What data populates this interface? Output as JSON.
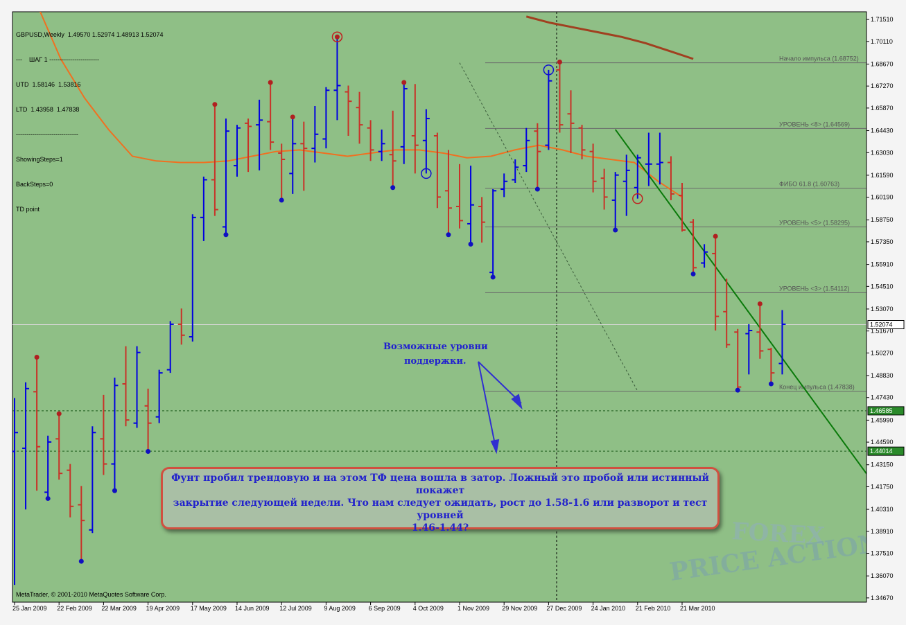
{
  "info_panel": {
    "line1": "GBPUSD,Weekly  1.49570 1.52974 1.48913 1.52074",
    "line2": "---    ШАГ 1 ------------------------",
    "line3": "UTD  1.58146  1.53816",
    "line4": "LTD  1.43958  1.47838",
    "line5": "------------------------------",
    "line6": "ShowingSteps=1",
    "line7": "BackSteps=0",
    "line8": "TD point"
  },
  "copyright": "MetaTrader, © 2001-2010 MetaQuotes Software Corp.",
  "watermark": {
    "line1": "FOREX",
    "line2": "PRICE ACTION"
  },
  "support_annotation": {
    "line1": "Возможные уровни",
    "line2": "поддержки."
  },
  "callout": {
    "line1": "Фунт пробил трендовую и на этом ТФ цена вошла в затор. Ложный это пробой или истинный покажет",
    "line2": "закрытие следующей недели. Что нам следует ожидать, рост до 1.58-1.6 или разворот и тест уровней",
    "line3": "1.46-1.44?"
  },
  "colors": {
    "background": "#8fbf86",
    "up_bar": "#0000e0",
    "down_bar": "#c83228",
    "moving_average_fast": "#f07020",
    "moving_average_slow": "#a04020",
    "trendline": "#0a7a0a",
    "level_line": "#6a6a6a",
    "price_marker_current": "#ffffff",
    "price_marker_support": "#2a8a2a"
  },
  "chart_data": {
    "type": "ohlc",
    "symbol": "GBPUSD,Weekly",
    "ylim": [
      1.344,
      1.72
    ],
    "y_ticks": [
      "1.71510",
      "1.70110",
      "1.68670",
      "1.67270",
      "1.65870",
      "1.64430",
      "1.63030",
      "1.61590",
      "1.60190",
      "1.58750",
      "1.57350",
      "1.55910",
      "1.54510",
      "1.53070",
      "1.51670",
      "1.50270",
      "1.48830",
      "1.47430",
      "1.45990",
      "1.44590",
      "1.43150",
      "1.41750",
      "1.40310",
      "1.38910",
      "1.37510",
      "1.36070",
      "1.34670"
    ],
    "x_labels": [
      {
        "label": "25 Jan 2009",
        "bar": 0
      },
      {
        "label": "22 Feb 2009",
        "bar": 4
      },
      {
        "label": "22 Mar 2009",
        "bar": 8
      },
      {
        "label": "19 Apr 2009",
        "bar": 12
      },
      {
        "label": "17 May 2009",
        "bar": 16
      },
      {
        "label": "14 Jun 2009",
        "bar": 20
      },
      {
        "label": "12 Jul 2009",
        "bar": 24
      },
      {
        "label": "9 Aug 2009",
        "bar": 28
      },
      {
        "label": "6 Sep 2009",
        "bar": 32
      },
      {
        "label": "4 Oct 2009",
        "bar": 36
      },
      {
        "label": "1 Nov 2009",
        "bar": 40
      },
      {
        "label": "29 Nov 2009",
        "bar": 44
      },
      {
        "label": "27 Dec 2009",
        "bar": 48
      },
      {
        "label": "24 Jan 2010",
        "bar": 52
      },
      {
        "label": "21 Feb 2010",
        "bar": 56
      },
      {
        "label": "21 Mar 2010",
        "bar": 60
      }
    ],
    "bars": [
      {
        "o": 1.44,
        "h": 1.474,
        "l": 1.355,
        "c": 1.452
      },
      {
        "o": 1.442,
        "h": 1.484,
        "l": 1.403,
        "c": 1.48
      },
      {
        "o": 1.478,
        "h": 1.5,
        "l": 1.415,
        "c": 1.443
      },
      {
        "o": 1.414,
        "h": 1.45,
        "l": 1.41,
        "c": 1.446
      },
      {
        "o": 1.448,
        "h": 1.464,
        "l": 1.422,
        "c": 1.426
      },
      {
        "o": 1.428,
        "h": 1.432,
        "l": 1.398,
        "c": 1.405
      },
      {
        "o": 1.406,
        "h": 1.418,
        "l": 1.37,
        "c": 1.396
      },
      {
        "o": 1.39,
        "h": 1.456,
        "l": 1.388,
        "c": 1.452
      },
      {
        "o": 1.448,
        "h": 1.476,
        "l": 1.425,
        "c": 1.432
      },
      {
        "o": 1.432,
        "h": 1.487,
        "l": 1.415,
        "c": 1.482
      },
      {
        "o": 1.483,
        "h": 1.507,
        "l": 1.456,
        "c": 1.46
      },
      {
        "o": 1.458,
        "h": 1.507,
        "l": 1.455,
        "c": 1.503
      },
      {
        "o": 1.469,
        "h": 1.48,
        "l": 1.44,
        "c": 1.458
      },
      {
        "o": 1.462,
        "h": 1.492,
        "l": 1.458,
        "c": 1.49
      },
      {
        "o": 1.492,
        "h": 1.523,
        "l": 1.49,
        "c": 1.521
      },
      {
        "o": 1.521,
        "h": 1.531,
        "l": 1.508,
        "c": 1.514
      },
      {
        "o": 1.513,
        "h": 1.591,
        "l": 1.51,
        "c": 1.589
      },
      {
        "o": 1.589,
        "h": 1.615,
        "l": 1.574,
        "c": 1.613
      },
      {
        "o": 1.613,
        "h": 1.661,
        "l": 1.59,
        "c": 1.594
      },
      {
        "o": 1.583,
        "h": 1.652,
        "l": 1.578,
        "c": 1.644
      },
      {
        "o": 1.622,
        "h": 1.648,
        "l": 1.615,
        "c": 1.646
      },
      {
        "o": 1.649,
        "h": 1.652,
        "l": 1.618,
        "c": 1.647
      },
      {
        "o": 1.648,
        "h": 1.664,
        "l": 1.619,
        "c": 1.651
      },
      {
        "o": 1.65,
        "h": 1.675,
        "l": 1.632,
        "c": 1.637
      },
      {
        "o": 1.63,
        "h": 1.636,
        "l": 1.6,
        "c": 1.626
      },
      {
        "o": 1.617,
        "h": 1.653,
        "l": 1.604,
        "c": 1.636
      },
      {
        "o": 1.636,
        "h": 1.65,
        "l": 1.606,
        "c": 1.633
      },
      {
        "o": 1.633,
        "h": 1.66,
        "l": 1.624,
        "c": 1.642
      },
      {
        "o": 1.639,
        "h": 1.672,
        "l": 1.633,
        "c": 1.67
      },
      {
        "o": 1.67,
        "h": 1.704,
        "l": 1.651,
        "c": 1.673
      },
      {
        "o": 1.669,
        "h": 1.673,
        "l": 1.641,
        "c": 1.663
      },
      {
        "o": 1.659,
        "h": 1.669,
        "l": 1.636,
        "c": 1.648
      },
      {
        "o": 1.646,
        "h": 1.651,
        "l": 1.625,
        "c": 1.632
      },
      {
        "o": 1.631,
        "h": 1.645,
        "l": 1.625,
        "c": 1.636
      },
      {
        "o": 1.629,
        "h": 1.657,
        "l": 1.608,
        "c": 1.625
      },
      {
        "o": 1.634,
        "h": 1.675,
        "l": 1.623,
        "c": 1.671
      },
      {
        "o": 1.641,
        "h": 1.674,
        "l": 1.617,
        "c": 1.635
      },
      {
        "o": 1.638,
        "h": 1.658,
        "l": 1.617,
        "c": 1.652
      },
      {
        "o": 1.641,
        "h": 1.643,
        "l": 1.595,
        "c": 1.602
      },
      {
        "o": 1.606,
        "h": 1.632,
        "l": 1.578,
        "c": 1.595
      },
      {
        "o": 1.596,
        "h": 1.623,
        "l": 1.582,
        "c": 1.587
      },
      {
        "o": 1.585,
        "h": 1.622,
        "l": 1.572,
        "c": 1.597
      },
      {
        "o": 1.596,
        "h": 1.602,
        "l": 1.573,
        "c": 1.586
      },
      {
        "o": 1.554,
        "h": 1.607,
        "l": 1.551,
        "c": 1.606
      },
      {
        "o": 1.607,
        "h": 1.617,
        "l": 1.602,
        "c": 1.612
      },
      {
        "o": 1.613,
        "h": 1.626,
        "l": 1.611,
        "c": 1.621
      },
      {
        "o": 1.622,
        "h": 1.646,
        "l": 1.618,
        "c": 1.638
      },
      {
        "o": 1.644,
        "h": 1.649,
        "l": 1.607,
        "c": 1.631
      },
      {
        "o": 1.635,
        "h": 1.683,
        "l": 1.632,
        "c": 1.676
      },
      {
        "o": 1.683,
        "h": 1.688,
        "l": 1.643,
        "c": 1.648
      },
      {
        "o": 1.655,
        "h": 1.67,
        "l": 1.63,
        "c": 1.649
      },
      {
        "o": 1.646,
        "h": 1.648,
        "l": 1.626,
        "c": 1.632
      },
      {
        "o": 1.631,
        "h": 1.636,
        "l": 1.605,
        "c": 1.612
      },
      {
        "o": 1.614,
        "h": 1.62,
        "l": 1.594,
        "c": 1.602
      },
      {
        "o": 1.6,
        "h": 1.618,
        "l": 1.581,
        "c": 1.616
      },
      {
        "o": 1.612,
        "h": 1.629,
        "l": 1.59,
        "c": 1.619
      },
      {
        "o": 1.608,
        "h": 1.629,
        "l": 1.601,
        "c": 1.627
      },
      {
        "o": 1.623,
        "h": 1.643,
        "l": 1.609,
        "c": 1.623
      },
      {
        "o": 1.623,
        "h": 1.643,
        "l": 1.61,
        "c": 1.624
      },
      {
        "o": 1.624,
        "h": 1.628,
        "l": 1.6,
        "c": 1.604
      },
      {
        "o": 1.603,
        "h": 1.611,
        "l": 1.58,
        "c": 1.581
      },
      {
        "o": 1.586,
        "h": 1.588,
        "l": 1.553,
        "c": 1.557
      },
      {
        "o": 1.56,
        "h": 1.572,
        "l": 1.557,
        "c": 1.567
      },
      {
        "o": 1.566,
        "h": 1.577,
        "l": 1.517,
        "c": 1.526
      },
      {
        "o": 1.529,
        "h": 1.55,
        "l": 1.506,
        "c": 1.508
      },
      {
        "o": 1.516,
        "h": 1.518,
        "l": 1.479,
        "c": 1.481
      },
      {
        "o": 1.515,
        "h": 1.521,
        "l": 1.489,
        "c": 1.517
      },
      {
        "o": 1.516,
        "h": 1.534,
        "l": 1.499,
        "c": 1.504
      },
      {
        "o": 1.505,
        "h": 1.506,
        "l": 1.483,
        "c": 1.49
      },
      {
        "o": 1.496,
        "h": 1.53,
        "l": 1.489,
        "c": 1.521
      }
    ],
    "moving_average_fast": [
      1.725,
      1.69,
      1.665,
      1.645,
      1.628,
      1.625,
      1.624,
      1.624,
      1.625,
      1.628,
      1.631,
      1.632,
      1.63,
      1.628,
      1.63,
      1.632,
      1.632,
      1.63,
      1.627,
      1.628,
      1.632,
      1.635,
      1.632,
      1.628,
      1.626,
      1.624,
      1.612,
      1.602
    ],
    "moving_average_slow": [
      1.717,
      1.713,
      1.71,
      1.707,
      1.704,
      1.7,
      1.695,
      1.69
    ],
    "levels": [
      {
        "name": "Начало импульса",
        "value": "1.68752",
        "v": 1.68752
      },
      {
        "name": "УРОВЕНЬ <8>",
        "value": "1.64569",
        "v": 1.64569
      },
      {
        "name": "ФИБО 61.8",
        "value": "1.60763",
        "v": 1.60763
      },
      {
        "name": "УРОВЕНЬ <5>",
        "value": "1.58295",
        "v": 1.58295
      },
      {
        "name": "УРОВЕНЬ <3>",
        "value": "1.54112",
        "v": 1.54112
      },
      {
        "name": "Конец импульса",
        "value": "1.47838",
        "v": 1.47838
      }
    ],
    "current_price": {
      "label": "1.52074",
      "v": 1.52074
    },
    "support_lines": [
      {
        "label": "1.46585",
        "v": 1.46585
      },
      {
        "label": "1.44014",
        "v": 1.44014
      }
    ],
    "trendline": {
      "from": {
        "bar": 54,
        "v": 1.645
      },
      "to": {
        "bar": 85,
        "v": 1.344
      }
    },
    "projection_line": {
      "from": {
        "bar": 40,
        "v": 1.6875
      },
      "to": {
        "bar": 56,
        "v": 1.4784
      }
    }
  }
}
